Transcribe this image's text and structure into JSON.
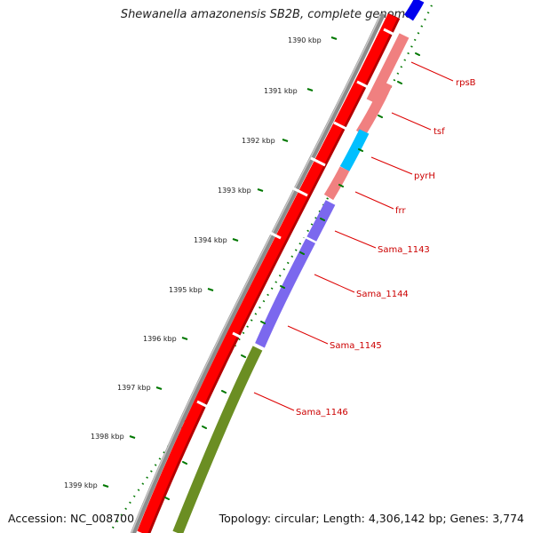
{
  "title": "Shewanella amazonensis SB2B, complete genome",
  "accession_label": "Accession: NC_008700",
  "topology_label": "Topology: circular; Length: 4,306,142 bp; Genes: 3,774",
  "colors": {
    "backbone": "#8c8c8c",
    "cds_red": "#ff0000",
    "rrna_pink": "#f08080",
    "trna_cyan": "#00bfff",
    "blue_feature": "#0000ee",
    "purple_feature": "#7b68ee",
    "olive_feature": "#6b8e23",
    "tick_green": "#007700",
    "label_red": "#cc0000"
  },
  "ruler_labels": [
    "1390 kbp",
    "1391 kbp",
    "1392 kbp",
    "1393 kbp",
    "1394 kbp",
    "1395 kbp",
    "1396 kbp",
    "1397 kbp",
    "1398 kbp",
    "1399 kbp"
  ],
  "gene_labels": [
    "rpsB",
    "tsf",
    "pyrH",
    "frr",
    "Sama_1143",
    "Sama_1144",
    "Sama_1145",
    "Sama_1146"
  ]
}
